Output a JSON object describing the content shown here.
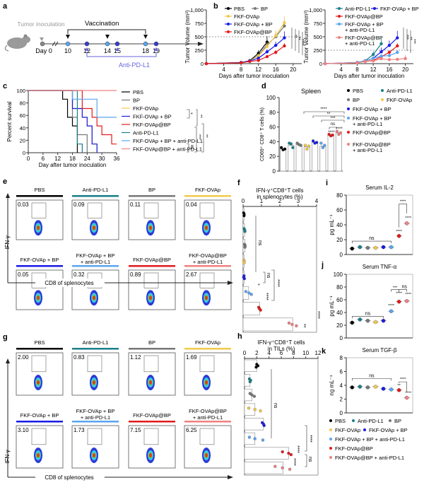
{
  "colors": {
    "PBS": "#000000",
    "Anti-PD-L1": "#1a7f8a",
    "BP": "#777777",
    "FKF-OVAp": "#f2c94c",
    "FKF-OVAp + BP": "#1a1ae6",
    "FKF-OVAp + BP + anti-PD-L1": "#5aa5ef",
    "FKF-OVAp@BP": "#e31a1c",
    "FKF-OVAp@BP + anti-PD-L1": "#f08080",
    "axis": "#333333",
    "timeline_blue": "#6666dd"
  },
  "panel_labels": [
    "a",
    "b",
    "c",
    "d",
    "e",
    "f",
    "g",
    "h",
    "i",
    "j",
    "k"
  ],
  "timeline": {
    "inoculation_label": "Tumor inoculation",
    "vaccination_label": "Vaccination",
    "antibody_label": "Anti-PD-L1",
    "day_labels": [
      "Day 0",
      "10",
      "12",
      "14",
      "15",
      "18",
      "19"
    ],
    "vaccination_days": [
      "10",
      "14",
      "18"
    ],
    "antibody_days": [
      "12",
      "15",
      "19"
    ]
  },
  "chart_data": [
    {
      "id": "b1",
      "type": "line",
      "title": "",
      "xlabel": "Days after tumor inoculation",
      "ylabel": "Tumor Volume (mm³)",
      "xlim": [
        0,
        22
      ],
      "ylim": [
        0,
        1000
      ],
      "xticks": [
        4,
        8,
        12,
        16,
        20
      ],
      "yticks": [
        0,
        250,
        500,
        750,
        1000
      ],
      "ytick_labels": [
        "0",
        "250",
        "500",
        "750",
        "1,000"
      ],
      "reference_line": 500,
      "x": [
        0,
        8,
        10,
        12,
        14,
        16,
        18
      ],
      "series": [
        {
          "name": "PBS",
          "values": [
            0,
            20,
            55,
            190,
            400,
            null,
            null
          ],
          "err": [
            0,
            5,
            10,
            60,
            110,
            0,
            0
          ]
        },
        {
          "name": "BP",
          "values": [
            0,
            20,
            50,
            150,
            350,
            500,
            700
          ],
          "err": [
            0,
            5,
            10,
            40,
            60,
            100,
            100
          ]
        },
        {
          "name": "FKF-OVAp",
          "values": [
            0,
            20,
            50,
            140,
            320,
            520,
            760
          ],
          "err": [
            0,
            5,
            10,
            40,
            60,
            100,
            120
          ]
        },
        {
          "name": "FKF-OVAp + BP",
          "values": [
            0,
            20,
            50,
            100,
            220,
            340,
            480
          ],
          "err": [
            0,
            5,
            10,
            30,
            50,
            70,
            120
          ]
        },
        {
          "name": "FKF-OVAp@BP",
          "values": [
            0,
            15,
            40,
            60,
            130,
            210,
            330
          ],
          "err": [
            0,
            5,
            10,
            20,
            30,
            40,
            50
          ]
        }
      ],
      "legend": [
        "PBS",
        "BP",
        "FKF-OVAp",
        "FKF-OVAp + BP",
        "FKF-OVAp@BP"
      ],
      "significance": [
        "**",
        "**",
        "****",
        "*"
      ]
    },
    {
      "id": "b2",
      "type": "line",
      "title": "",
      "xlabel": "Days after tumor inoculation",
      "ylabel": "Tumor Volume (mm³)",
      "xlim": [
        0,
        22
      ],
      "ylim": [
        0,
        1000
      ],
      "xticks": [
        4,
        8,
        12,
        16,
        20
      ],
      "yticks": [
        0,
        250,
        500,
        750,
        1000
      ],
      "ytick_labels": [
        "0",
        "250",
        "500",
        "750",
        "1,000"
      ],
      "reference_line": 250,
      "x": [
        0,
        8,
        10,
        12,
        14,
        16,
        18,
        20
      ],
      "series": [
        {
          "name": "Anti-PD-L1",
          "values": [
            0,
            20,
            55,
            170,
            370,
            null,
            null,
            null
          ],
          "err": [
            0,
            5,
            10,
            60,
            100,
            0,
            0,
            0
          ]
        },
        {
          "name": "FKF-OVAp + BP",
          "values": [
            0,
            20,
            50,
            100,
            220,
            340,
            480,
            null
          ],
          "err": [
            0,
            5,
            10,
            30,
            80,
            90,
            130,
            0
          ]
        },
        {
          "name": "FKF-OVAp@BP",
          "values": [
            0,
            15,
            40,
            60,
            130,
            210,
            330,
            null
          ],
          "err": [
            0,
            5,
            10,
            20,
            30,
            40,
            50,
            0
          ]
        },
        {
          "name": "FKF-OVAp + BP + anti-PD-L1",
          "values": [
            0,
            20,
            50,
            100,
            140,
            150,
            210,
            null
          ],
          "err": [
            0,
            5,
            10,
            20,
            30,
            30,
            40,
            0
          ]
        },
        {
          "name": "FKF-OVAp@BP + anti-PD-L1",
          "values": [
            0,
            15,
            40,
            50,
            90,
            75,
            80,
            95
          ],
          "err": [
            0,
            5,
            5,
            15,
            20,
            20,
            30,
            60
          ]
        }
      ],
      "legend": [
        "Anti-PD-L1",
        "FKF-OVAp + BP",
        "FKF-OVAp@BP",
        "FKF-OVAp + BP + anti-PD-L1",
        "FKF-OVAp@BP + anti-PD-L1"
      ],
      "significance": [
        "***",
        "**",
        "***"
      ]
    },
    {
      "id": "c",
      "type": "line",
      "title": "",
      "xlabel": "Day after tumor inoculation",
      "ylabel": "Percent survival",
      "xlim": [
        0,
        36
      ],
      "ylim": [
        0,
        100
      ],
      "xticks": [
        0,
        6,
        12,
        18,
        24,
        30,
        36
      ],
      "yticks": [
        0,
        20,
        40,
        60,
        80,
        100
      ],
      "series": [
        {
          "name": "PBS",
          "steps": [
            [
              0,
              100
            ],
            [
              14,
              100
            ],
            [
              14,
              86
            ],
            [
              16,
              86
            ],
            [
              16,
              57
            ],
            [
              18,
              57
            ],
            [
              18,
              43
            ],
            [
              20,
              43
            ],
            [
              20,
              0
            ]
          ]
        },
        {
          "name": "BP",
          "steps": [
            [
              0,
              100
            ],
            [
              18,
              100
            ],
            [
              18,
              57
            ],
            [
              20,
              57
            ],
            [
              20,
              29
            ],
            [
              24,
              29
            ],
            [
              24,
              0
            ]
          ]
        },
        {
          "name": "FKF-OVAp",
          "steps": [
            [
              0,
              100
            ],
            [
              18,
              100
            ],
            [
              18,
              71
            ],
            [
              22,
              71
            ],
            [
              22,
              57
            ],
            [
              24,
              57
            ],
            [
              24,
              43
            ],
            [
              26,
              43
            ],
            [
              26,
              14
            ],
            [
              28,
              14
            ],
            [
              28,
              0
            ]
          ]
        },
        {
          "name": "FKF-OVAp + BP",
          "steps": [
            [
              0,
              100
            ],
            [
              18,
              100
            ],
            [
              18,
              71
            ],
            [
              22,
              71
            ],
            [
              22,
              57
            ],
            [
              24,
              57
            ],
            [
              24,
              43
            ],
            [
              26,
              43
            ],
            [
              26,
              14
            ],
            [
              28,
              14
            ],
            [
              28,
              0
            ]
          ]
        },
        {
          "name": "FKF-OVAp@BP",
          "steps": [
            [
              0,
              100
            ],
            [
              22,
              100
            ],
            [
              22,
              86
            ],
            [
              22,
              71
            ],
            [
              26,
              71
            ],
            [
              26,
              57
            ],
            [
              28,
              57
            ],
            [
              28,
              43
            ],
            [
              30,
              43
            ],
            [
              30,
              29
            ],
            [
              34,
              29
            ],
            [
              34,
              14
            ],
            [
              36,
              14
            ]
          ]
        },
        {
          "name": "Anti-PD-L1",
          "steps": [
            [
              0,
              100
            ],
            [
              20,
              100
            ],
            [
              20,
              14
            ],
            [
              22,
              14
            ],
            [
              22,
              0
            ]
          ]
        },
        {
          "name": "FKF-OVAp + BP + anti-PD-L1",
          "steps": [
            [
              0,
              100
            ],
            [
              18,
              100
            ],
            [
              18,
              86
            ],
            [
              28,
              86
            ],
            [
              28,
              57
            ],
            [
              36,
              57
            ]
          ]
        },
        {
          "name": "FKF-OVAp@BP + anti-PD-L1",
          "steps": [
            [
              0,
              100
            ],
            [
              36,
              100
            ]
          ]
        }
      ],
      "legend": [
        "PBS",
        "BP",
        "FKF-OVAp",
        "FKF-OVAp + BP",
        "FKF-OVAp@BP",
        "Anti-PD-L1",
        "FKF-OVAp + BP + anti-PD-L1",
        "FKF-OVAp@BP + anti-PD-L1"
      ],
      "significance": [
        "*",
        "**",
        "ns",
        "***",
        "**"
      ]
    },
    {
      "id": "d",
      "type": "bar",
      "title": "Spleen",
      "xlabel": "",
      "ylabel": "CD69⁺ CD8⁺ T cells (%)",
      "ylim": [
        0,
        100
      ],
      "yticks": [
        0,
        20,
        40,
        60,
        80,
        100
      ],
      "categories": [
        "PBS",
        "Anti-PD-L1",
        "BP",
        "FKF-OVAp",
        "FKF-OVAp + BP",
        "FKF-OVAp + BP + anti-PD-L1",
        "FKF-OVAp@BP",
        "FKF-OVAp@BP + anti-PD-L1"
      ],
      "values": [
        30,
        35,
        36,
        33,
        39,
        34,
        49,
        52
      ],
      "points": [
        [
          32,
          29,
          30
        ],
        [
          38,
          37,
          32
        ],
        [
          38,
          36,
          35
        ],
        [
          35,
          30,
          34
        ],
        [
          41,
          38,
          39
        ],
        [
          38,
          32,
          35
        ],
        [
          50,
          48,
          49
        ],
        [
          54,
          50,
          52
        ]
      ],
      "significance": [
        "****",
        "**",
        "***",
        "ns",
        "****",
        "****"
      ],
      "legend": [
        "PBS",
        "Anti-PD-L1",
        "BP",
        "FKF-OVAp",
        "FKF-OVAp + BP",
        "FKF-OVAp + BP + anti-PD-L1",
        "FKF-OVAp@BP",
        "FKF-OVAp@BP + anti-PD-L1"
      ]
    },
    {
      "id": "f",
      "type": "bar",
      "orientation": "horizontal",
      "title": "IFN-γ⁺CD8⁺T cells in splenocytes (%)",
      "xlim": [
        0,
        4
      ],
      "xticks": [
        0,
        1,
        2,
        3,
        4
      ],
      "categories": [
        "PBS",
        "Anti-PD-L1",
        "BP",
        "FKF-OVAp",
        "FKF-OVAp + BP",
        "FKF-OVAp + BP + anti-PD-L1",
        "FKF-OVAp@BP",
        "FKF-OVAp@BP + anti-PD-L1"
      ],
      "values": [
        0.05,
        0.08,
        0.1,
        0.05,
        0.05,
        0.3,
        0.9,
        2.7
      ],
      "points": [
        [
          0.03,
          0.06,
          0.05
        ],
        [
          0.05,
          0.09,
          0.1
        ],
        [
          0.08,
          0.11,
          0.1
        ],
        [
          0.04,
          0.06,
          0.05
        ],
        [
          0.05,
          0.03,
          0.07
        ],
        [
          0.15,
          0.32,
          0.45
        ],
        [
          0.85,
          0.89,
          0.95
        ],
        [
          2.5,
          2.67,
          2.9
        ]
      ],
      "significance": [
        "ns",
        "ns",
        "*",
        "****",
        "****",
        "****",
        "**",
        "****"
      ]
    },
    {
      "id": "h",
      "type": "bar",
      "orientation": "horizontal",
      "title": "IFN-γ⁺CD8⁺T cells in TILs (%)",
      "xlim": [
        0,
        12
      ],
      "xticks": [
        0,
        2,
        4,
        6,
        8,
        10,
        12
      ],
      "categories": [
        "PBS",
        "Anti-PD-L1",
        "BP",
        "FKF-OVAp",
        "FKF-OVAp + BP",
        "FKF-OVAp + BP + anti-PD-L1",
        "FKF-OVAp@BP",
        "FKF-OVAp@BP + anti-PD-L1"
      ],
      "values": [
        2.0,
        0.9,
        1.2,
        1.7,
        3.1,
        1.7,
        7.2,
        6.3
      ],
      "points": [
        [
          2.0,
          2.2,
          1.9
        ],
        [
          0.8,
          1.0,
          0.9
        ],
        [
          0.9,
          1.2,
          1.6
        ],
        [
          0.7,
          1.7,
          2.6
        ],
        [
          2.9,
          3.1,
          3.2
        ],
        [
          0.8,
          1.7,
          3.0
        ],
        [
          6.2,
          7.2,
          7.6
        ],
        [
          5.0,
          6.2,
          7.4
        ]
      ],
      "significance": [
        "ns",
        "****",
        "ns",
        "****",
        "****"
      ]
    },
    {
      "id": "i",
      "type": "scatter",
      "title": "Serum IL-2",
      "ylabel": "pg mL⁻¹",
      "ylim": [
        0,
        80
      ],
      "yticks": [
        0,
        20,
        40,
        60,
        80
      ],
      "categories": [
        "PBS",
        "Anti-PD-L1",
        "BP",
        "FKF-OVAp",
        "FKF-OVAp + BP",
        "FKF-OVAp + BP + anti-PD-L1",
        "FKF-OVAp@BP",
        "FKF-OVAp@BP + anti-PD-L1"
      ],
      "values": [
        8,
        10,
        9,
        9,
        10,
        10,
        25,
        42
      ],
      "significance": [
        "ns",
        "****",
        "****",
        "****"
      ]
    },
    {
      "id": "j",
      "type": "scatter",
      "title": "Serum TNF-α",
      "ylabel": "pg mL⁻¹",
      "ylim": [
        0,
        100
      ],
      "yticks": [
        0,
        20,
        40,
        60,
        80,
        100
      ],
      "categories": [
        "PBS",
        "Anti-PD-L1",
        "BP",
        "FKF-OVAp",
        "FKF-OVAp + BP",
        "FKF-OVAp + BP + anti-PD-L1",
        "FKF-OVAp@BP",
        "FKF-OVAp@BP + anti-PD-L1"
      ],
      "values": [
        24,
        29,
        27,
        25,
        27,
        42,
        57,
        58
      ],
      "significance": [
        "ns",
        "****",
        "****",
        "****",
        "***",
        "ns"
      ]
    },
    {
      "id": "k",
      "type": "scatter",
      "title": "Serum TGF-β",
      "ylabel": "ng mL⁻¹",
      "ylim": [
        0,
        8
      ],
      "yticks": [
        0,
        2,
        4,
        6,
        8
      ],
      "categories": [
        "PBS",
        "Anti-PD-L1",
        "BP",
        "FKF-OVAp",
        "FKF-OVAp + BP",
        "FKF-OVAp + BP + anti-PD-L1",
        "FKF-OVAp@BP",
        "FKF-OVAp@BP + anti-PD-L1"
      ],
      "values": [
        3.7,
        3.8,
        3.7,
        3.8,
        3.5,
        3.4,
        3.3,
        2.2
      ],
      "significance": [
        "ns",
        "**",
        "****",
        "****"
      ]
    }
  ],
  "flow_e": {
    "axis_y": "IFN-γ",
    "axis_x": "CD8 of splenocytes",
    "plots": [
      {
        "name": "PBS",
        "value": "0.03"
      },
      {
        "name": "Anti-PD-L1",
        "value": "0.09"
      },
      {
        "name": "BP",
        "value": "0.11"
      },
      {
        "name": "FKF-OVAp",
        "value": "0.04"
      },
      {
        "name": "FKF-OVAp + BP",
        "value": "0.05"
      },
      {
        "name": "FKF-OVAp + BP\n+ anti-PD-L1",
        "value": "0.32"
      },
      {
        "name": "FKF-OVAp@BP",
        "value": "0.89"
      },
      {
        "name": "FKF-OVAp@BP\n+ anti-PD-L1",
        "value": "2.67"
      }
    ]
  },
  "flow_g": {
    "axis_y": "IFN-γ",
    "axis_x": "CD8 of splenocytes",
    "plots": [
      {
        "name": "PBS",
        "value": "2.00"
      },
      {
        "name": "Anti-PD-L1",
        "value": "0.83"
      },
      {
        "name": "BP",
        "value": "1.12"
      },
      {
        "name": "FKF-OVAp",
        "value": "1.69"
      },
      {
        "name": "FKF-OVAp + BP",
        "value": "3.10"
      },
      {
        "name": "FKF-OVAp + BP\n+ anti-PD-L1",
        "value": "1.73"
      },
      {
        "name": "FKF-OVAp@BP",
        "value": "7.15"
      },
      {
        "name": "FKF-OVAp@BP\n+ anti-PD-L1",
        "value": "6.25"
      }
    ]
  },
  "legend_k": [
    "PBS",
    "Anti-PD-L1",
    "BP",
    "FKF-OVAp",
    "FKF-OVAp + BP",
    "FKF-OVAp + BP + anti-PD-L1",
    "FKF-OVAp@BP",
    "FKF-OVAp@BP + anti-PD-L1"
  ]
}
